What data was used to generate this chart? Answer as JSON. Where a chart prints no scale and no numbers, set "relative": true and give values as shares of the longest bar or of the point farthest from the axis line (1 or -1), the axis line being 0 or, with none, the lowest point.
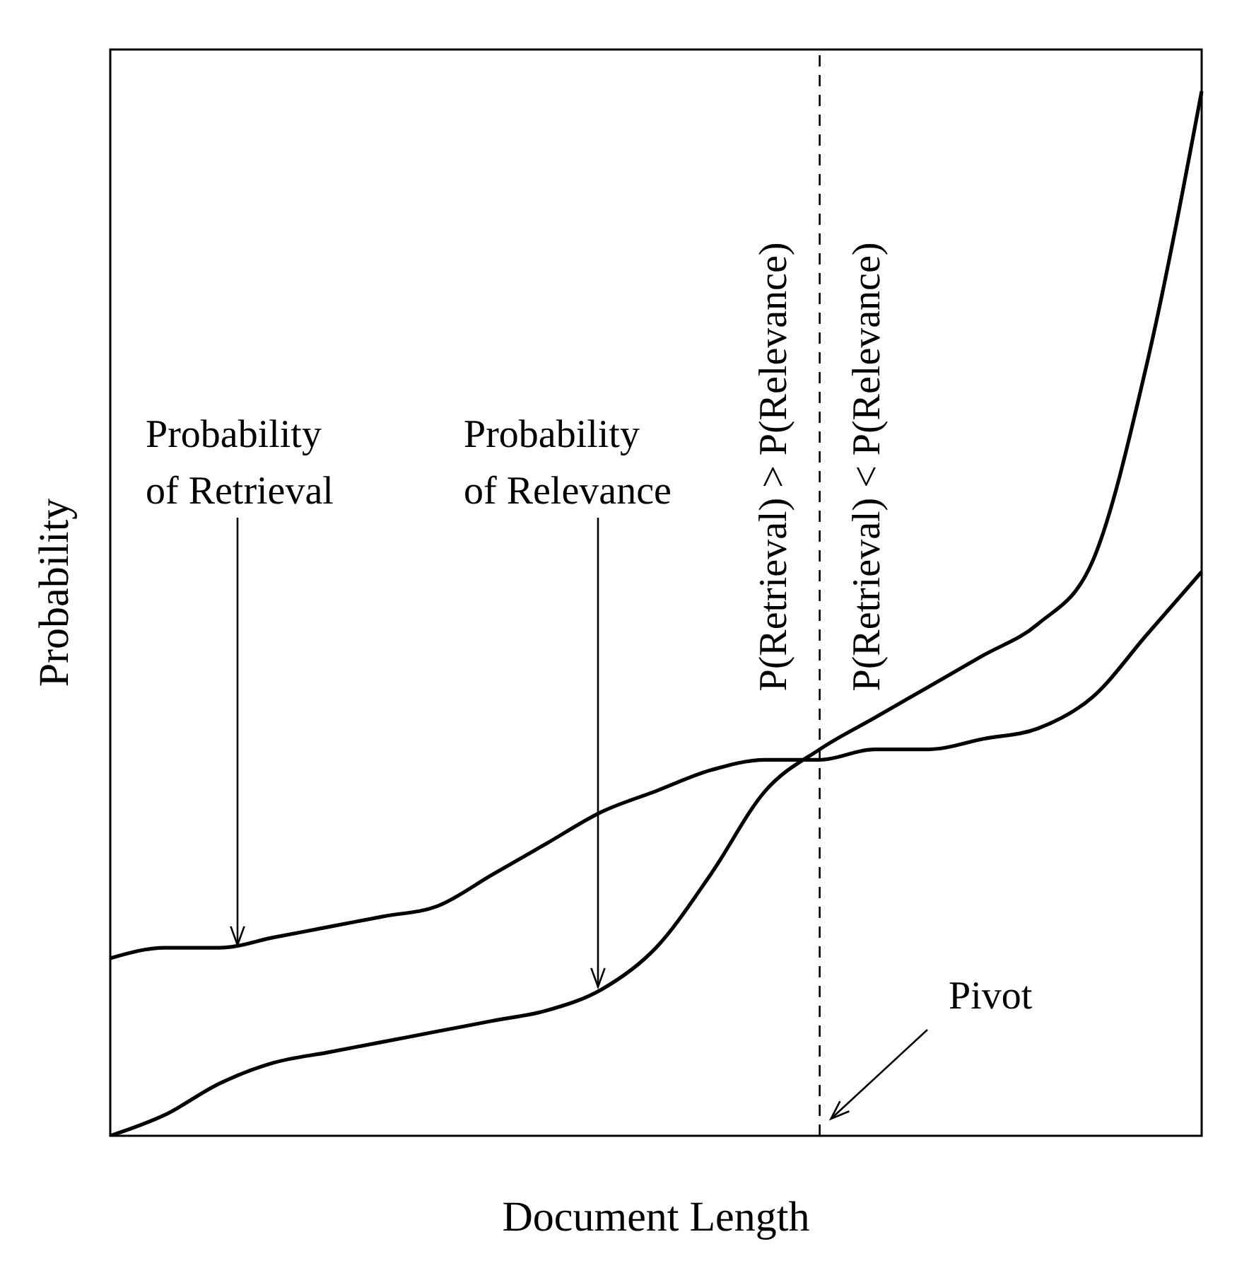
{
  "chart_data": {
    "type": "line",
    "relative": true,
    "xlabel": "Document Length",
    "ylabel": "Probability",
    "marker": "none",
    "line_style": "solid",
    "categories": [
      null,
      null,
      null,
      null,
      null,
      null,
      null,
      null,
      null,
      null,
      null,
      null,
      null,
      null,
      null,
      null,
      null,
      null,
      null,
      null,
      null
    ],
    "series": [
      {
        "color": "#000000",
        "values": [
          0.17,
          0.18,
          0.18,
          0.19,
          0.2,
          0.21,
          0.22,
          0.25,
          0.28,
          0.31,
          0.33,
          0.35,
          0.36,
          0.36,
          0.37,
          0.37,
          0.38,
          0.39,
          0.42,
          0.48,
          0.54
        ]
      },
      {
        "color": "#000000",
        "values": [
          0,
          0.02,
          0.05,
          0.07,
          0.08,
          0.09,
          0.1,
          0.11,
          0.12,
          0.14,
          0.18,
          0.25,
          0.33,
          0.37,
          0.4,
          0.43,
          0.46,
          0.49,
          0.55,
          0.74,
          1
        ]
      }
    ],
    "annotations": [
      "Probability of Retrieval",
      "Probability of Relevance",
      "P(Retrieval) > P(Relevance)",
      "P(Retrieval) < P(Relevance)",
      "Pivot"
    ]
  }
}
